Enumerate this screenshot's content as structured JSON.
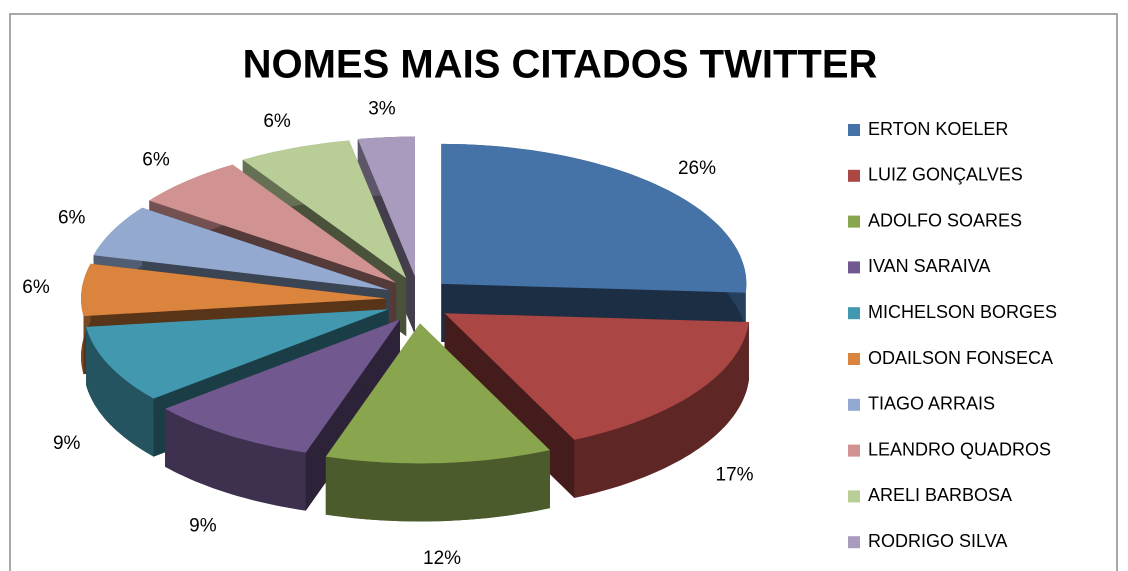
{
  "chart_data": {
    "type": "pie3d",
    "title": "NOMES MAIS CITADOS TWITTER",
    "categories": [
      "ERTON KOELER",
      "LUIZ GONÇALVES",
      "ADOLFO SOARES",
      "IVAN SARAIVA",
      "MICHELSON BORGES",
      "ODAILSON FONSECA",
      "TIAGO ARRAIS",
      "LEANDRO QUADROS",
      "ARELI BARBOSA",
      "RODRIGO SILVA"
    ],
    "values": [
      26,
      17,
      12,
      9,
      9,
      6,
      6,
      6,
      6,
      3
    ],
    "value_labels": [
      "26%",
      "17%",
      "12%",
      "9%",
      "9%",
      "6%",
      "6%",
      "6%",
      "6%",
      "3%"
    ],
    "colors": [
      "#4572a7",
      "#aa4643",
      "#89a54e",
      "#71588f",
      "#4198af",
      "#db843d",
      "#93a9cf",
      "#d19392",
      "#b9cd96",
      "#a99bbd"
    ],
    "legend": "right"
  }
}
